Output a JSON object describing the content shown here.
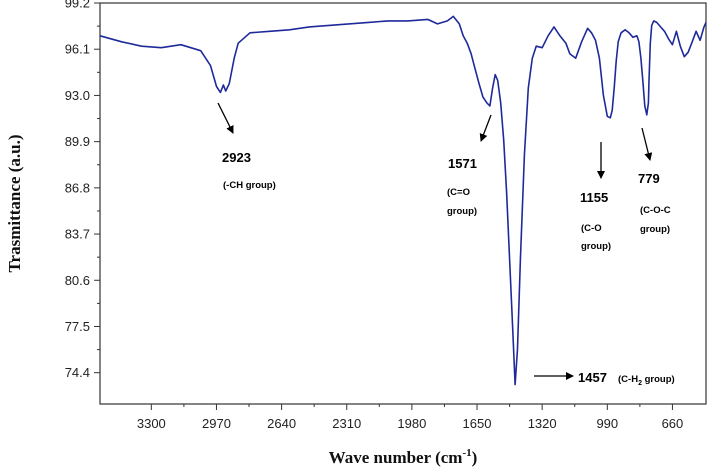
{
  "chart_data": {
    "type": "line",
    "title": "",
    "xlabel": "Wave number (cm",
    "xlabel_sup": "-1",
    "xlabel_close": ")",
    "ylabel": "Trasmittance (a.u.)",
    "xlim": [
      3560,
      490
    ],
    "ylim": [
      72.3,
      99.2
    ],
    "x_ticks": [
      3300,
      2970,
      2640,
      2310,
      1980,
      1650,
      1320,
      990,
      660
    ],
    "y_ticks": [
      99.2,
      96.1,
      93.0,
      89.9,
      86.8,
      83.7,
      80.6,
      77.5,
      74.4
    ],
    "grid": false,
    "line_color": "#1f2a9a",
    "series": [
      {
        "x": [
          3560,
          3450,
          3350,
          3250,
          3150,
          3050,
          3000,
          2970,
          2950,
          2935,
          2923,
          2905,
          2880,
          2860,
          2800,
          2700,
          2600,
          2500,
          2400,
          2300,
          2200,
          2100,
          2000,
          1900,
          1850,
          1800,
          1770,
          1740,
          1720,
          1700,
          1680,
          1660,
          1640,
          1620,
          1600,
          1585,
          1571,
          1558,
          1545,
          1530,
          1515,
          1500,
          1485,
          1470,
          1457,
          1445,
          1430,
          1410,
          1390,
          1370,
          1350,
          1320,
          1290,
          1260,
          1230,
          1200,
          1180,
          1150,
          1120,
          1090,
          1070,
          1050,
          1030,
          1010,
          990,
          975,
          965,
          955,
          945,
          935,
          920,
          900,
          880,
          860,
          840,
          830,
          820,
          810,
          800,
          790,
          782,
          779,
          772,
          765,
          755,
          740,
          720,
          700,
          680,
          660,
          640,
          620,
          600,
          580,
          560,
          540,
          520,
          500,
          490
        ],
        "y": [
          97.0,
          96.6,
          96.3,
          96.2,
          96.4,
          96.0,
          95.0,
          93.6,
          93.2,
          93.7,
          93.3,
          93.8,
          95.5,
          96.5,
          97.2,
          97.3,
          97.4,
          97.6,
          97.7,
          97.8,
          97.9,
          98.0,
          98.0,
          98.1,
          97.8,
          98.0,
          98.3,
          97.8,
          97.0,
          96.5,
          95.8,
          94.8,
          93.8,
          92.9,
          92.5,
          92.3,
          93.5,
          94.4,
          94.0,
          92.5,
          90.0,
          86.5,
          82.0,
          77.5,
          73.6,
          76.0,
          82.0,
          89.0,
          93.5,
          95.5,
          96.3,
          96.2,
          97.0,
          97.6,
          97.0,
          96.5,
          95.8,
          95.5,
          96.6,
          97.5,
          97.2,
          96.7,
          95.5,
          93.0,
          91.6,
          91.5,
          92.0,
          93.5,
          95.3,
          96.6,
          97.2,
          97.4,
          97.2,
          96.9,
          97.0,
          96.6,
          95.5,
          94.0,
          92.3,
          91.7,
          92.5,
          94.0,
          96.5,
          97.7,
          98.0,
          97.9,
          97.6,
          97.3,
          96.8,
          96.4,
          97.3,
          96.3,
          95.6,
          95.9,
          96.6,
          97.3,
          96.7,
          97.6,
          97.9
        ]
      }
    ],
    "annotations": [
      {
        "number": "2923",
        "text": [
          "(-CH group)"
        ]
      },
      {
        "number": "1571",
        "text": [
          "(C=O",
          "group)"
        ]
      },
      {
        "number": "1155",
        "text": [
          "(C-O",
          "group)"
        ]
      },
      {
        "number": "779",
        "text": [
          "(C-O-C",
          "group)"
        ]
      },
      {
        "number": "1457",
        "text": [
          "(C-H",
          "2",
          " group)"
        ]
      }
    ]
  }
}
